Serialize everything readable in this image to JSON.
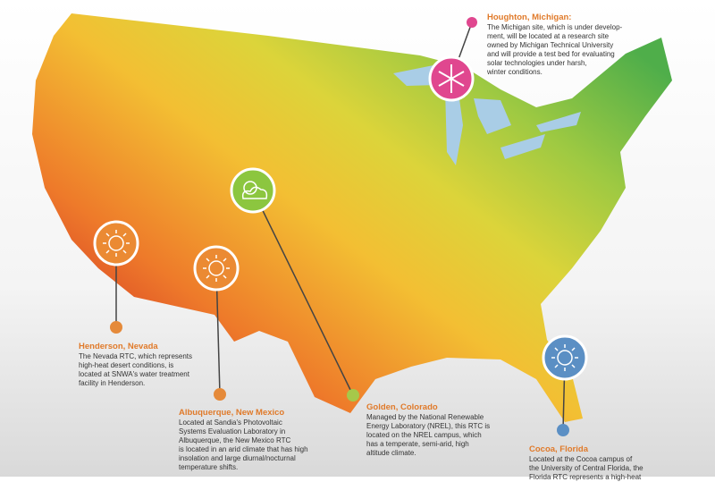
{
  "sites": [
    {
      "name": "Houghton, Michigan:",
      "lines": [
        "The Michigan site, which is under develop-",
        "ment, will be located at a research site",
        "owned by Michigan Technical University",
        "and will provide a test bed for evaluating",
        "solar technologies under harsh,",
        "winter conditions."
      ]
    },
    {
      "name": "Henderson, Nevada",
      "lines": [
        "The Nevada RTC, which represents",
        "high-heat desert conditions, is",
        "located at SNWA's water treatment",
        "facility in Henderson."
      ]
    },
    {
      "name": "Albuquerque, New Mexico",
      "lines": [
        "Located at Sandia's Photovoltaic",
        "Systems Evaluation Laboratory in",
        "Albuquerque, the New Mexico RTC",
        "is located in an arid climate that has high",
        "insolation and large diurnal/nocturnal",
        "temperature shifts."
      ]
    },
    {
      "name": "Golden, Colorado",
      "lines": [
        "Managed by the National Renewable",
        "Energy Laboratory (NREL), this RTC is",
        "located on the NREL campus, which",
        "has a temperate, semi-arid, high",
        "altitude climate."
      ]
    },
    {
      "name": "Cocoa, Florida",
      "lines": [
        "Located at the Cocoa campus of",
        "the University of Central Florida, the",
        "Florida RTC represents a high-heat"
      ]
    }
  ]
}
